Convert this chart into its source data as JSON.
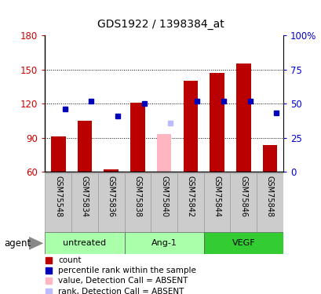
{
  "title": "GDS1922 / 1398384_at",
  "samples": [
    "GSM75548",
    "GSM75834",
    "GSM75836",
    "GSM75838",
    "GSM75840",
    "GSM75842",
    "GSM75844",
    "GSM75846",
    "GSM75848"
  ],
  "bar_values": [
    91,
    105,
    62,
    121,
    93,
    140,
    147,
    155,
    84
  ],
  "bar_absent": [
    false,
    false,
    false,
    false,
    true,
    false,
    false,
    false,
    false
  ],
  "rank_values": [
    46,
    52,
    41,
    50,
    36,
    52,
    52,
    52,
    43
  ],
  "rank_absent": [
    false,
    false,
    false,
    false,
    true,
    false,
    false,
    false,
    false
  ],
  "bar_color": "#BB0000",
  "bar_color_absent": "#FFB6C1",
  "rank_color": "#0000BB",
  "rank_color_absent": "#BBBBFF",
  "ylim_left": [
    60,
    180
  ],
  "ylim_right": [
    0,
    100
  ],
  "yticks_left": [
    60,
    90,
    120,
    150,
    180
  ],
  "ytick_labels_left": [
    "60",
    "90",
    "120",
    "150",
    "180"
  ],
  "yticks_right": [
    0,
    25,
    50,
    75,
    100
  ],
  "ytick_labels_right": [
    "0",
    "25",
    "50",
    "75",
    "100%"
  ],
  "groups": [
    {
      "label": "untreated",
      "color": "#AAFFAA",
      "dark": false
    },
    {
      "label": "Ang-1",
      "color": "#AAFFAA",
      "dark": false
    },
    {
      "label": "VEGF",
      "color": "#33CC33",
      "dark": true
    }
  ],
  "agent_label": "agent",
  "bar_width": 0.55,
  "rank_marker_size": 5,
  "grid_color": "black",
  "grid_linestyle": "dotted",
  "fig_width": 4.1,
  "fig_height": 3.75
}
